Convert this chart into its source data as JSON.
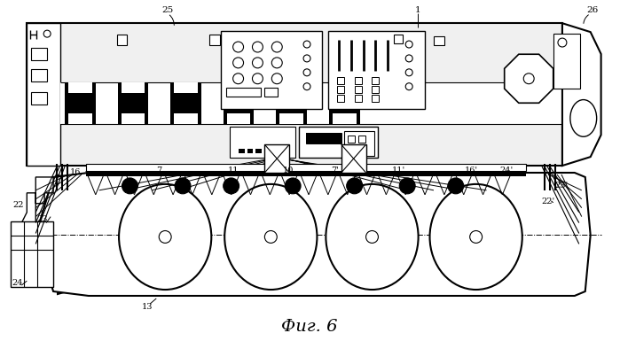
{
  "title": "Фиг. 6",
  "bg_color": "#ffffff",
  "line_color": "#000000",
  "fig_width": 6.99,
  "fig_height": 3.85,
  "dpi": 100
}
